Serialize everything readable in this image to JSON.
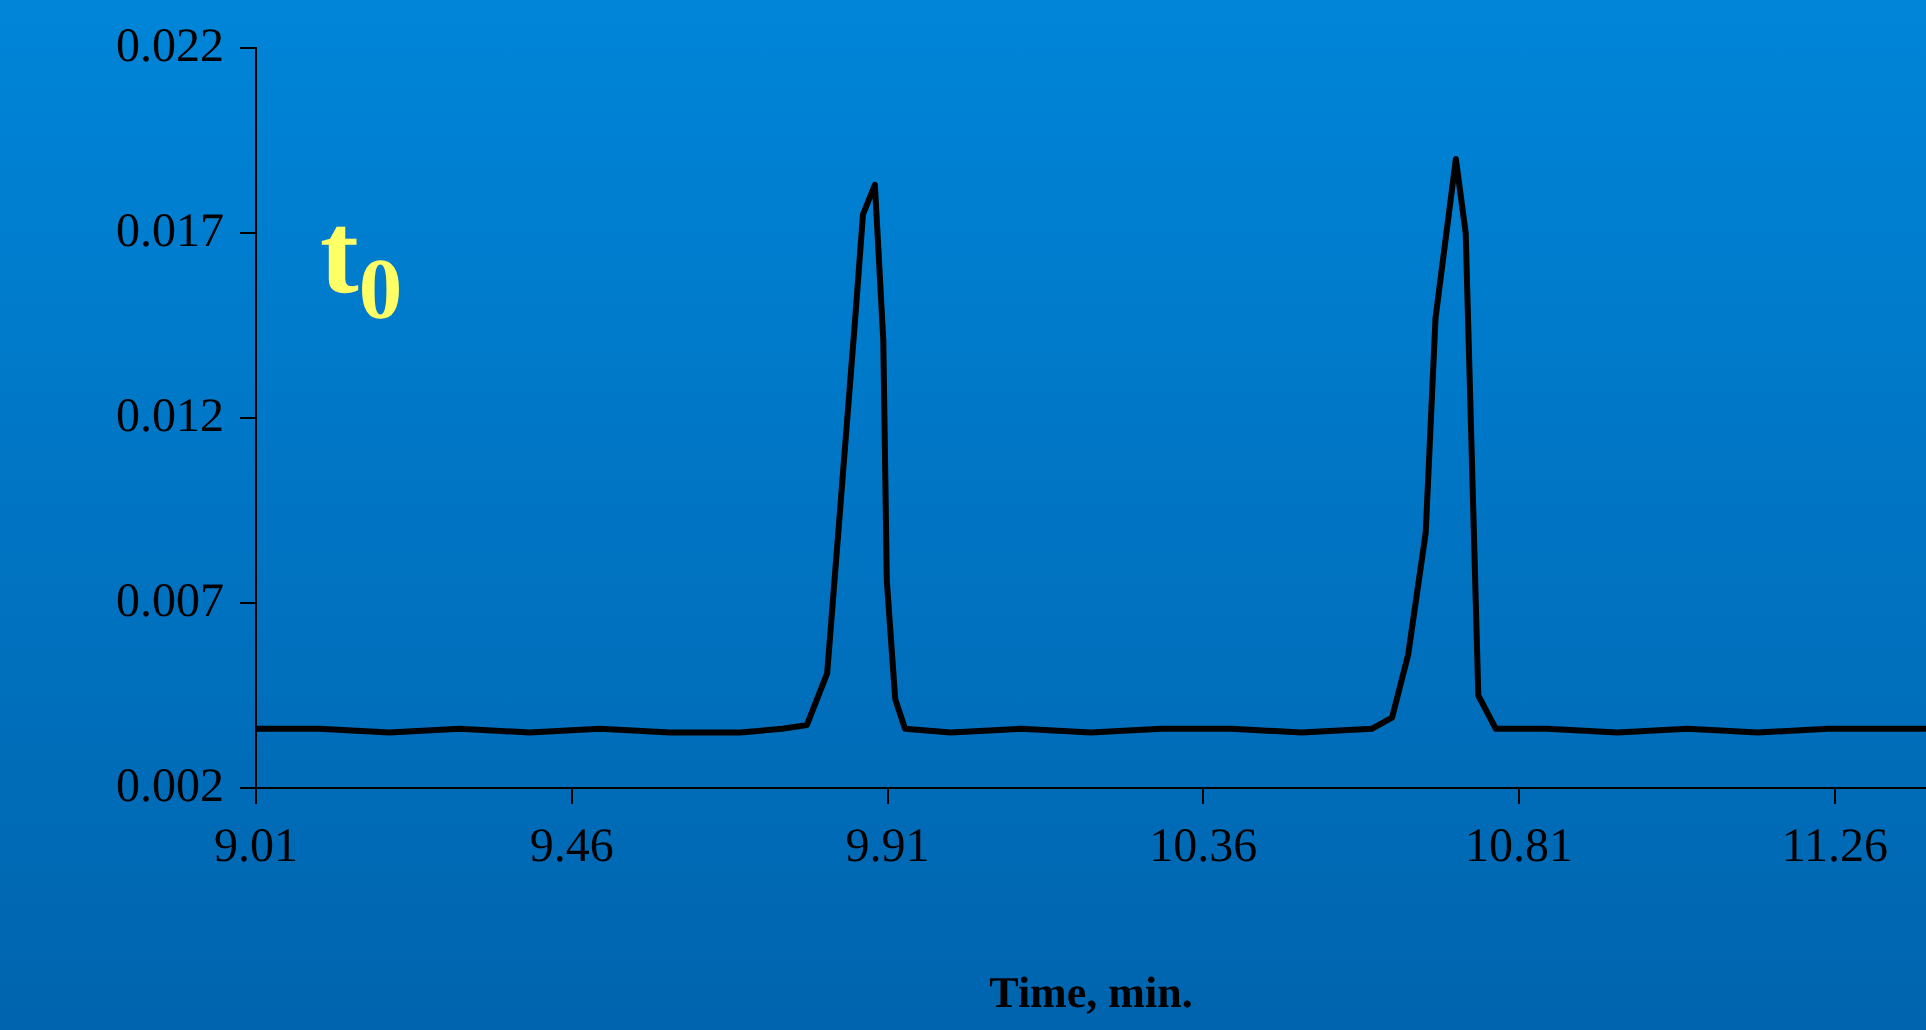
{
  "chart_data": {
    "type": "line",
    "xlabel": "Time, min.",
    "annotations": [
      "t$_{0}$"
    ],
    "series": [
      {
        "color": "#000000",
        "x": [
          9.01,
          9.1,
          9.2,
          9.3,
          9.4,
          9.5,
          9.6,
          9.7,
          9.76,
          9.795,
          9.824,
          9.864,
          9.875,
          9.892,
          9.904,
          9.909,
          9.921,
          9.935,
          10.0,
          10.1,
          10.2,
          10.3,
          10.4,
          10.5,
          10.6,
          10.629,
          10.652,
          10.677,
          10.691,
          10.72,
          10.734,
          10.752,
          10.777,
          10.85,
          10.95,
          11.05,
          11.15,
          11.25,
          11.39
        ],
        "values": [
          0.0036,
          0.0036,
          0.0035,
          0.0036,
          0.0035,
          0.0036,
          0.0035,
          0.0035,
          0.0036,
          0.0037,
          0.0051,
          0.0147,
          0.0175,
          0.0183,
          0.0141,
          0.0076,
          0.0044,
          0.0036,
          0.0035,
          0.0036,
          0.0035,
          0.0036,
          0.0036,
          0.0035,
          0.0036,
          0.0039,
          0.0056,
          0.0089,
          0.0147,
          0.019,
          0.017,
          0.0045,
          0.0036,
          0.0036,
          0.0035,
          0.0036,
          0.0035,
          0.0036,
          0.0036
        ]
      }
    ],
    "xlim": [
      9.01,
      11.39
    ],
    "xticks": [
      9.01,
      9.46,
      9.91,
      10.36,
      10.81,
      11.26
    ],
    "ylim": [
      0.002,
      0.022
    ],
    "yticks": [
      0.002,
      0.007,
      0.012,
      0.017,
      0.022
    ],
    "legend": false,
    "marker": "none",
    "line_style": "solid"
  }
}
